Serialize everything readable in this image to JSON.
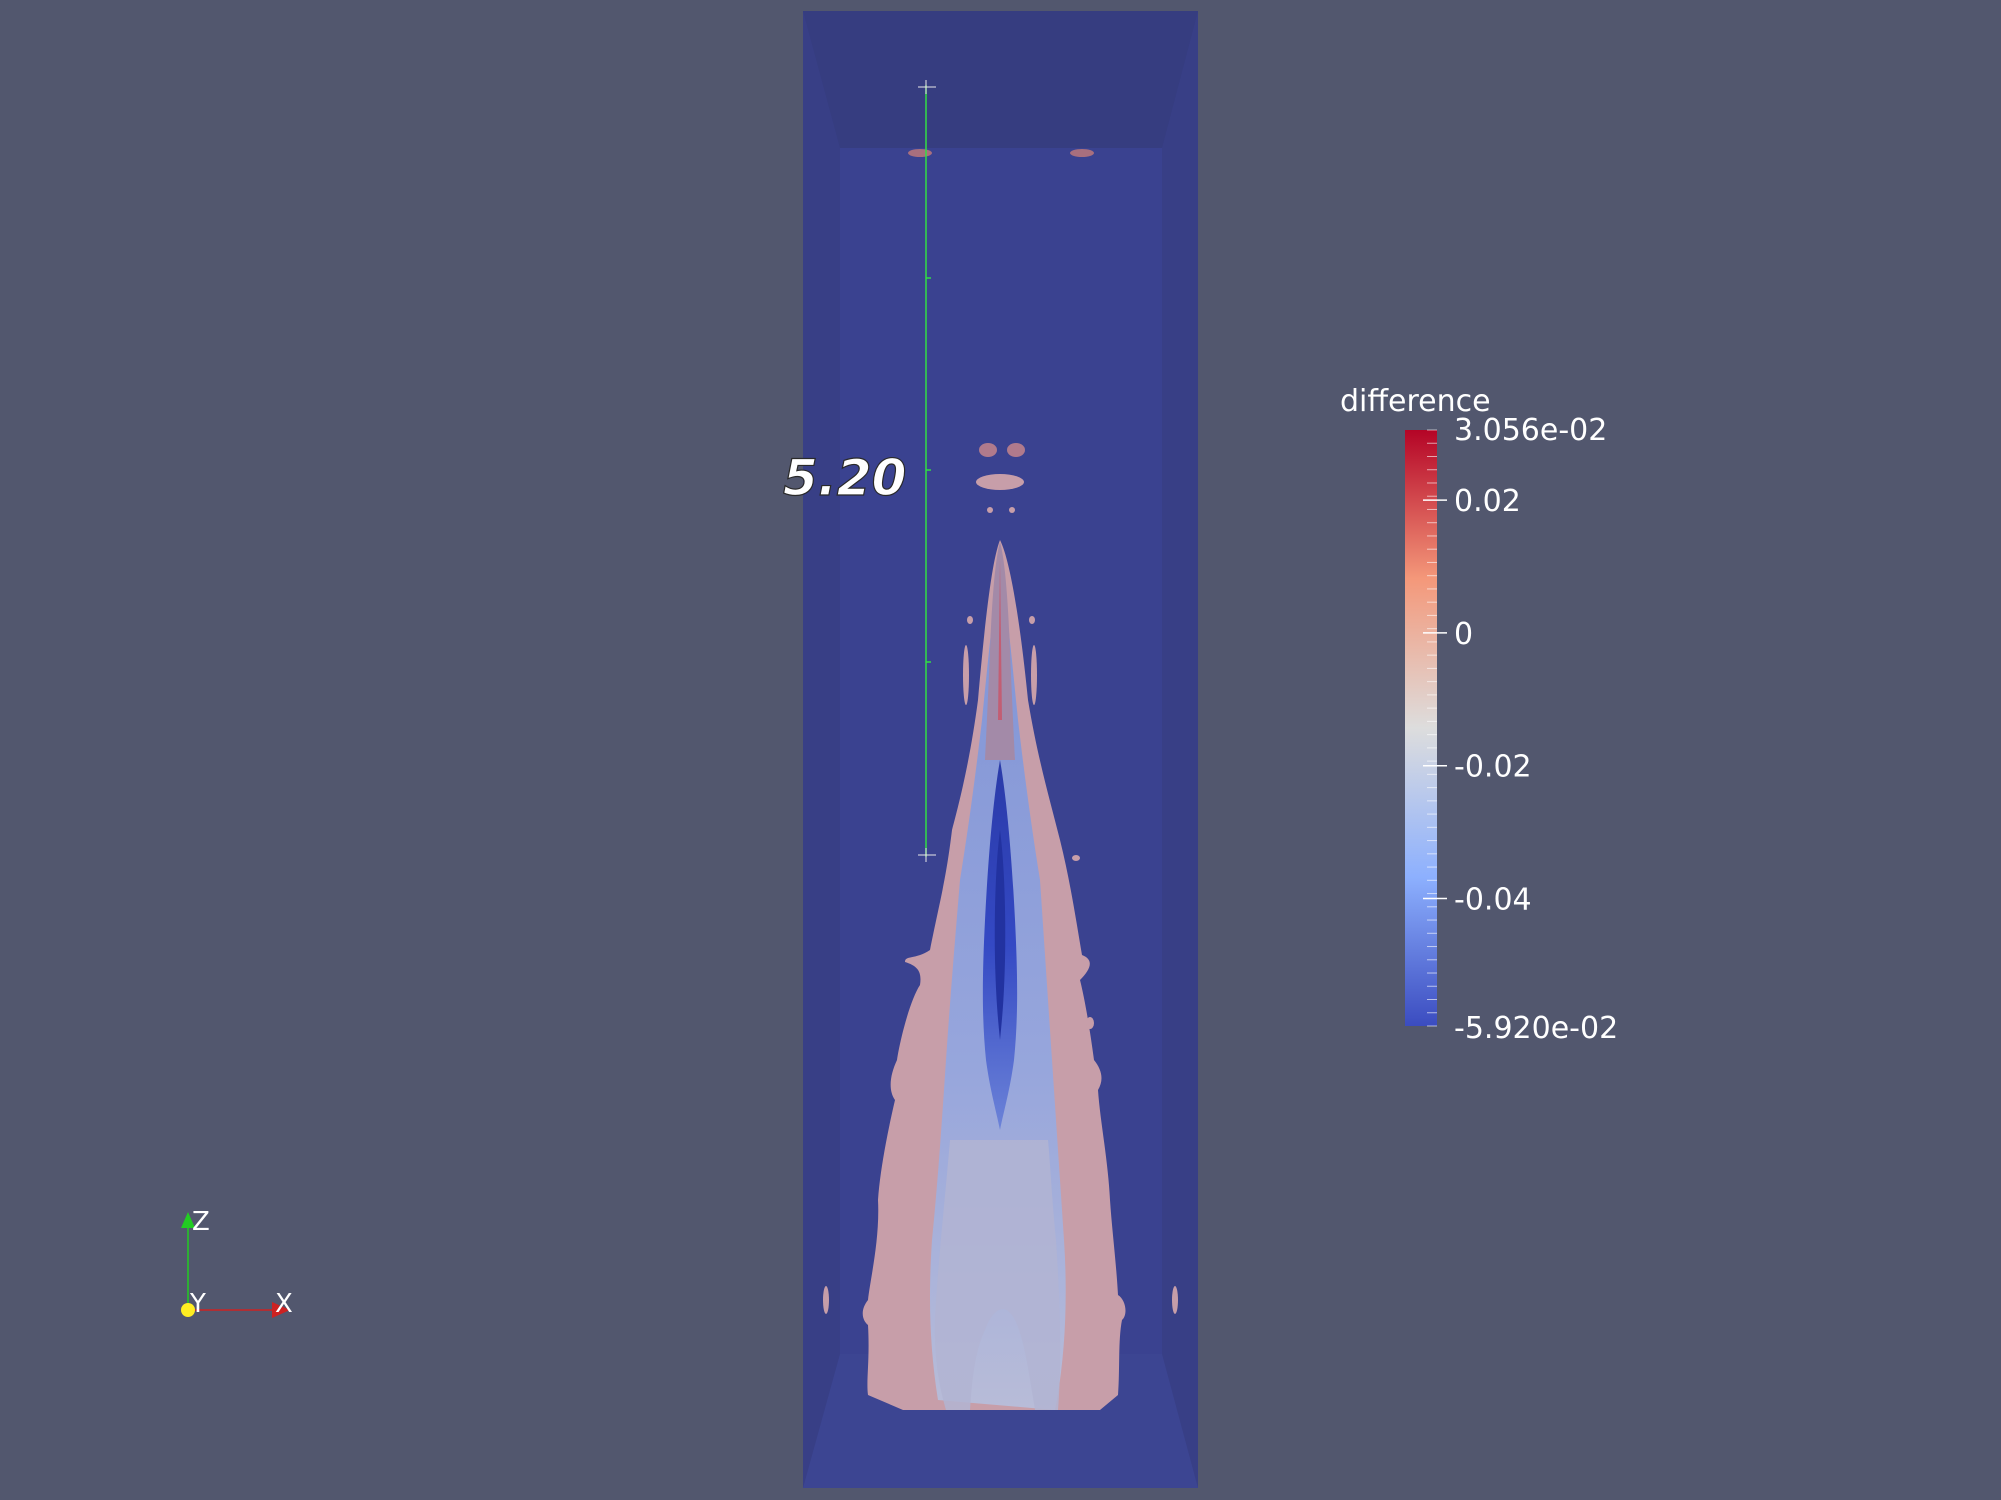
{
  "ruler": {
    "label": "5.20"
  },
  "colorbar": {
    "title": "difference",
    "max_label": "3.056e-02",
    "min_label": "-5.920e-02",
    "tick_labels": [
      "0.02",
      "0",
      "-0.02",
      "-0.04"
    ],
    "range": [
      -0.0592,
      0.03056
    ],
    "tick_values": [
      0.02,
      0,
      -0.02,
      -0.04
    ],
    "colormap": [
      "#3b4cc0",
      "#8db0fe",
      "#dddddd",
      "#f4987a",
      "#b40426"
    ]
  },
  "axes": {
    "z_label": "Z",
    "y_label": "Y",
    "x_label": "X"
  },
  "colors": {
    "background": "#52576e",
    "domain_box": "#383f86",
    "inner_box": "#3a4290",
    "ruler": "#33dd44",
    "plume_outer": "#c79ea9",
    "plume_mid": "#8ea0d8",
    "plume_core": "#2f43b8"
  }
}
